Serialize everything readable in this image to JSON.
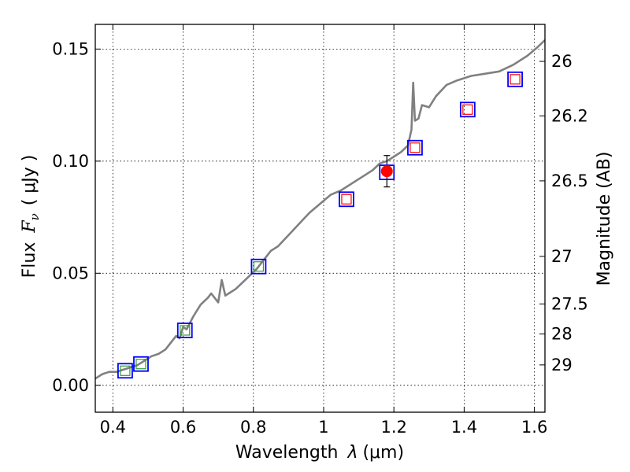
{
  "chart_data": {
    "type": "line+scatter",
    "title": "",
    "xlabel": "Wavelength",
    "xlabel_symbol": "λ",
    "xlabel_unit": "(μm)",
    "ylabel": "Flux",
    "ylabel_symbol": "F",
    "ylabel_subscript": "ν",
    "ylabel_unit": "( μJy )",
    "y2label": "Magnitude (AB)",
    "xlim": [
      0.35,
      1.63
    ],
    "ylim": [
      -0.012,
      0.161
    ],
    "xticks": [
      0.4,
      0.6,
      0.8,
      1.0,
      1.2,
      1.4,
      1.6
    ],
    "xtick_labels": [
      "0.4",
      "0.6",
      "0.8",
      "1",
      "1.2",
      "1.4",
      "1.6"
    ],
    "yticks": [
      0.0,
      0.05,
      0.1,
      0.15
    ],
    "ytick_labels": [
      "0.00",
      "0.05",
      "0.10",
      "0.15"
    ],
    "grid": true,
    "y2ticks": [
      {
        "label": "26",
        "flux": 0.1445
      },
      {
        "label": "26.2",
        "flux": 0.1202
      },
      {
        "label": "26.5",
        "flux": 0.0912
      },
      {
        "label": "27",
        "flux": 0.0575
      },
      {
        "label": "27.5",
        "flux": 0.0363
      },
      {
        "label": "28",
        "flux": 0.0229
      },
      {
        "label": "29",
        "flux": 0.0091
      }
    ],
    "model_spectrum": {
      "color": "#808080",
      "x": [
        0.35,
        0.37,
        0.39,
        0.41,
        0.43,
        0.45,
        0.47,
        0.49,
        0.51,
        0.53,
        0.55,
        0.57,
        0.58,
        0.59,
        0.6,
        0.61,
        0.62,
        0.63,
        0.65,
        0.67,
        0.68,
        0.7,
        0.71,
        0.72,
        0.73,
        0.75,
        0.77,
        0.79,
        0.81,
        0.83,
        0.85,
        0.87,
        0.9,
        0.93,
        0.96,
        0.99,
        1.02,
        1.05,
        1.08,
        1.11,
        1.14,
        1.16,
        1.18,
        1.2,
        1.22,
        1.24,
        1.25,
        1.255,
        1.26,
        1.27,
        1.28,
        1.3,
        1.32,
        1.35,
        1.38,
        1.42,
        1.46,
        1.5,
        1.54,
        1.58,
        1.61,
        1.63
      ],
      "y": [
        0.003,
        0.005,
        0.006,
        0.006,
        0.007,
        0.008,
        0.009,
        0.011,
        0.013,
        0.014,
        0.016,
        0.02,
        0.022,
        0.021,
        0.026,
        0.025,
        0.028,
        0.031,
        0.036,
        0.039,
        0.041,
        0.037,
        0.047,
        0.04,
        0.041,
        0.043,
        0.046,
        0.049,
        0.052,
        0.056,
        0.06,
        0.062,
        0.067,
        0.072,
        0.077,
        0.081,
        0.085,
        0.087,
        0.09,
        0.093,
        0.096,
        0.099,
        0.1,
        0.102,
        0.104,
        0.107,
        0.114,
        0.135,
        0.118,
        0.119,
        0.125,
        0.124,
        0.129,
        0.134,
        0.136,
        0.138,
        0.139,
        0.14,
        0.143,
        0.147,
        0.151,
        0.154
      ]
    },
    "observed_points": [
      {
        "x": 0.435,
        "y": 0.0065
      },
      {
        "x": 0.48,
        "y": 0.0095
      },
      {
        "x": 0.605,
        "y": 0.0245
      },
      {
        "x": 0.815,
        "y": 0.053
      },
      {
        "x": 1.065,
        "y": 0.083
      },
      {
        "x": 1.18,
        "y": 0.095
      },
      {
        "x": 1.26,
        "y": 0.106
      },
      {
        "x": 1.41,
        "y": 0.123
      },
      {
        "x": 1.545,
        "y": 0.1365
      }
    ],
    "model_points": [
      {
        "x": 0.435,
        "y": 0.0065,
        "color": "#2ca02c"
      },
      {
        "x": 0.48,
        "y": 0.0095,
        "color": "#2ca02c"
      },
      {
        "x": 0.605,
        "y": 0.0245,
        "color": "#2ca02c"
      },
      {
        "x": 0.815,
        "y": 0.053,
        "color": "#2ca02c"
      },
      {
        "x": 1.065,
        "y": 0.083,
        "color": "#ff0000"
      },
      {
        "x": 1.26,
        "y": 0.106,
        "color": "#ff0000"
      },
      {
        "x": 1.41,
        "y": 0.123,
        "color": "#ff0000"
      },
      {
        "x": 1.545,
        "y": 0.1365,
        "color": "#ff0000"
      }
    ],
    "highlight_point": {
      "x": 1.18,
      "y": 0.0955,
      "yerr_low": 0.0885,
      "yerr_high": 0.1025,
      "color": "#ff0000"
    },
    "colors": {
      "observed_box": "#0000ff",
      "axis": "#000000",
      "grid": "#000000"
    }
  }
}
